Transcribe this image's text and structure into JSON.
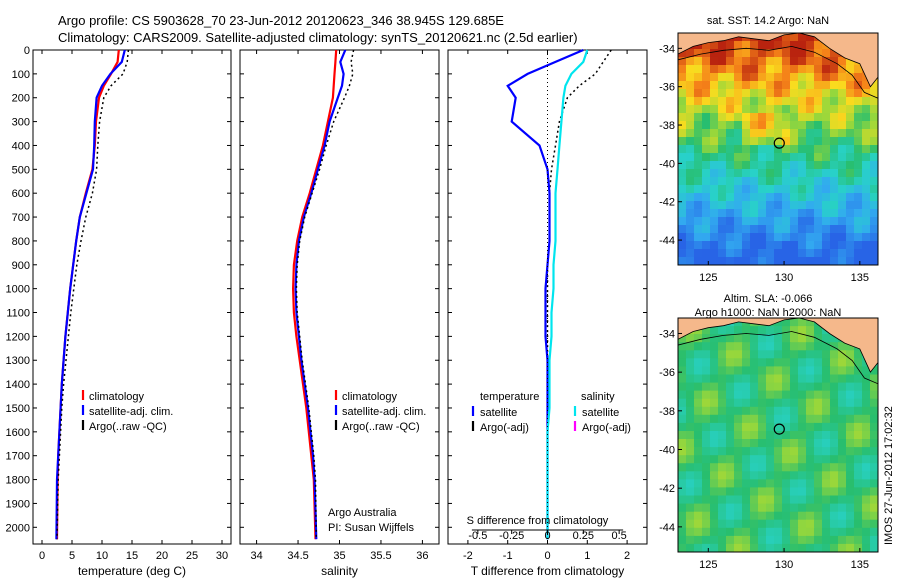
{
  "title_line1": "Argo profile: CS 5903628_70 23-Jun-2012 20120623_346 38.945S 129.685E",
  "title_line2": "Climatology: CARS2009. Satellite-adjusted climatology: synTS_20120621.nc (2.5d earlier)",
  "side_stamp": "IMOS 27-Jun-2012 17:02:32",
  "chart_data": [
    {
      "id": "temperature",
      "type": "line",
      "xlabel": "temperature (deg C)",
      "xlim": [
        -1.5,
        31.5
      ],
      "xticks": [
        0,
        5,
        10,
        15,
        20,
        25,
        30
      ],
      "ylim": [
        0,
        2070
      ],
      "yticks": [
        0,
        100,
        200,
        300,
        400,
        500,
        600,
        700,
        800,
        900,
        1000,
        1100,
        1200,
        1300,
        1400,
        1500,
        1600,
        1700,
        1800,
        1900,
        2000
      ],
      "legend": [
        "climatology",
        "satellite-adj. clim.",
        "Argo(..raw -QC)"
      ],
      "annotations": [],
      "series": [
        {
          "name": "climatology",
          "color": "#ff0000",
          "dash": false,
          "x": [
            12.8,
            12.6,
            11.5,
            10.3,
            9.5,
            9.0,
            8.8,
            8.4,
            7.3,
            6.3,
            5.7,
            5.2,
            4.7,
            4.3,
            3.9,
            3.6,
            3.3,
            3.1,
            2.9,
            2.7,
            2.6,
            2.5
          ],
          "y": [
            0,
            50,
            100,
            150,
            200,
            300,
            400,
            500,
            600,
            700,
            800,
            900,
            1000,
            1100,
            1200,
            1300,
            1400,
            1500,
            1600,
            1700,
            1800,
            2050
          ]
        },
        {
          "name": "satellite-adj. clim.",
          "color": "#0000ff",
          "dash": false,
          "x": [
            13.8,
            13.3,
            11.4,
            10.0,
            9.1,
            8.8,
            8.7,
            8.5,
            7.4,
            6.3,
            5.7,
            5.2,
            4.7,
            4.3,
            3.9,
            3.6,
            3.3,
            3.1,
            2.9,
            2.7,
            2.5,
            2.4
          ],
          "y": [
            0,
            50,
            100,
            150,
            200,
            300,
            400,
            500,
            600,
            700,
            800,
            900,
            1000,
            1100,
            1200,
            1300,
            1400,
            1500,
            1600,
            1700,
            1800,
            2050
          ]
        },
        {
          "name": "Argo(..raw -QC)",
          "color": "#000000",
          "dash": true,
          "x": [
            14.4,
            14.2,
            13.5,
            11.5,
            10.3,
            9.6,
            9.3,
            9.1,
            8.4,
            7.3,
            6.5,
            5.8,
            5.3,
            4.8,
            4.4,
            4.0,
            3.6,
            3.3,
            3.1,
            2.9,
            2.7,
            2.5
          ],
          "y": [
            0,
            50,
            100,
            150,
            200,
            300,
            400,
            500,
            600,
            700,
            800,
            900,
            1000,
            1100,
            1200,
            1300,
            1400,
            1500,
            1600,
            1700,
            1800,
            2050
          ]
        }
      ]
    },
    {
      "id": "salinity",
      "type": "line",
      "xlabel": "salinity",
      "xlim": [
        33.8,
        36.2
      ],
      "xticks": [
        34,
        34.5,
        35,
        35.5,
        36
      ],
      "xticklabels": [
        "34",
        "34.5",
        "35",
        "35.5",
        "36"
      ],
      "ylim": [
        0,
        2070
      ],
      "yticks": [
        0,
        100,
        200,
        300,
        400,
        500,
        600,
        700,
        800,
        900,
        1000,
        1100,
        1200,
        1300,
        1400,
        1500,
        1600,
        1700,
        1800,
        1900,
        2000
      ],
      "legend": [
        "climatology",
        "satellite-adj. clim.",
        "Argo(..raw -QC)"
      ],
      "annotations": [
        "Argo Australia",
        "PI: Susan Wijffels"
      ],
      "series": [
        {
          "name": "climatology",
          "color": "#ff0000",
          "dash": false,
          "x": [
            34.96,
            34.95,
            34.94,
            34.93,
            34.92,
            34.86,
            34.8,
            34.72,
            34.64,
            34.55,
            34.49,
            34.45,
            34.44,
            34.45,
            34.48,
            34.52,
            34.56,
            34.6,
            34.63,
            34.66,
            34.69,
            34.71
          ],
          "y": [
            0,
            50,
            100,
            150,
            200,
            300,
            400,
            500,
            600,
            700,
            800,
            900,
            1000,
            1100,
            1200,
            1300,
            1400,
            1500,
            1600,
            1700,
            1800,
            2050
          ]
        },
        {
          "name": "satellite-adj. clim.",
          "color": "#0000ff",
          "dash": false,
          "x": [
            35.07,
            35.01,
            35.05,
            35.03,
            34.98,
            34.88,
            34.82,
            34.74,
            34.66,
            34.57,
            34.51,
            34.48,
            34.47,
            34.48,
            34.51,
            34.54,
            34.58,
            34.62,
            34.65,
            34.68,
            34.7,
            34.72
          ],
          "y": [
            0,
            50,
            100,
            150,
            200,
            300,
            400,
            500,
            600,
            700,
            800,
            900,
            1000,
            1100,
            1200,
            1300,
            1400,
            1500,
            1600,
            1700,
            1800,
            2050
          ]
        },
        {
          "name": "Argo(..raw -QC)",
          "color": "#000000",
          "dash": true,
          "x": [
            35.17,
            35.14,
            35.16,
            35.12,
            35.06,
            34.93,
            34.84,
            34.76,
            34.67,
            34.58,
            34.52,
            34.49,
            34.48,
            34.49,
            34.52,
            34.55,
            34.59,
            34.63,
            34.66,
            34.69,
            34.71,
            34.72
          ],
          "y": [
            0,
            50,
            100,
            150,
            200,
            300,
            400,
            500,
            600,
            700,
            800,
            900,
            1000,
            1100,
            1200,
            1300,
            1400,
            1500,
            1600,
            1700,
            1800,
            2050
          ]
        }
      ]
    },
    {
      "id": "difference",
      "type": "line",
      "xlabel": "T difference from climatology",
      "xlabel_top": "S difference from climatology",
      "xlim": [
        -2.5,
        2.5
      ],
      "xticks": [
        -2,
        -1,
        0,
        1,
        2
      ],
      "xticklabels_top": [
        "-0.5",
        "-0.25",
        "0",
        "0.25",
        "0.5"
      ],
      "ylim": [
        0,
        2070
      ],
      "yticks": [
        0,
        100,
        200,
        300,
        400,
        500,
        600,
        700,
        800,
        900,
        1000,
        1100,
        1200,
        1300,
        1400,
        1500,
        1600,
        1700,
        1800,
        1900,
        2000
      ],
      "legend_headers": [
        "temperature",
        "salinity"
      ],
      "legend_left": [
        "satellite",
        "Argo(-adj)"
      ],
      "legend_right": [
        "satellite",
        "Argo(-adj)"
      ],
      "series": [
        {
          "name": "",
          "color": "#000000",
          "dash": true,
          "group": "temperature",
          "x": [
            1.6,
            1.4,
            1.2,
            0.8,
            0.5,
            0.3,
            0.2,
            0.1,
            0.05,
            0.05,
            0.05,
            0.0,
            0.0,
            0.0,
            0.0,
            0.0,
            0.0,
            0.0,
            0.0,
            0.0,
            0.0,
            0.0
          ],
          "y": [
            0,
            50,
            100,
            150,
            200,
            300,
            400,
            500,
            600,
            700,
            800,
            900,
            1000,
            1100,
            1200,
            1300,
            1400,
            1500,
            1600,
            1700,
            1800,
            2050
          ]
        },
        {
          "name": "",
          "color": "#0000ff",
          "dash": false,
          "group": "temperature",
          "x": [
            0.9,
            0.2,
            -0.5,
            -1.0,
            -0.8,
            -0.9,
            -0.2,
            0.0,
            0.05,
            0.05,
            0.05,
            0.0,
            -0.05,
            -0.05,
            -0.05,
            0.0,
            0.0,
            0.0,
            0.0,
            0.0,
            0.0,
            0.0
          ],
          "y": [
            0,
            50,
            100,
            150,
            200,
            300,
            400,
            500,
            600,
            700,
            800,
            900,
            1000,
            1100,
            1200,
            1300,
            1400,
            1500,
            1600,
            1700,
            1800,
            2050
          ]
        },
        {
          "name": "",
          "color": "#00e5ee",
          "dash": false,
          "group": "salinity",
          "x": [
            1.0,
            0.9,
            0.6,
            0.45,
            0.4,
            0.35,
            0.3,
            0.25,
            0.2,
            0.2,
            0.2,
            0.15,
            0.15,
            0.1,
            0.1,
            0.05,
            0.05,
            0.05,
            0.0,
            0.0,
            0.0,
            0.0
          ],
          "y": [
            0,
            50,
            100,
            150,
            200,
            300,
            400,
            500,
            600,
            700,
            800,
            900,
            1000,
            1100,
            1200,
            1300,
            1400,
            1500,
            1600,
            1700,
            1800,
            2050
          ]
        }
      ]
    },
    {
      "id": "sst_map",
      "type": "heatmap",
      "title": "sat. SST: 14.2  Argo: NaN",
      "xticks": [
        125,
        130,
        135
      ],
      "yticks": [
        -34,
        -36,
        -38,
        -40,
        -42,
        -44
      ],
      "marker": {
        "lon": 129.685,
        "lat": -38.945
      }
    },
    {
      "id": "sla_map",
      "type": "heatmap",
      "title": "Altim. SLA: -0.066",
      "subtitle": "Argo h1000: NaN h2000: NaN",
      "xticks": [
        125,
        130,
        135
      ],
      "yticks": [
        -34,
        -36,
        -38,
        -40,
        -42,
        -44
      ],
      "marker": {
        "lon": 129.685,
        "lat": -38.945
      }
    }
  ]
}
